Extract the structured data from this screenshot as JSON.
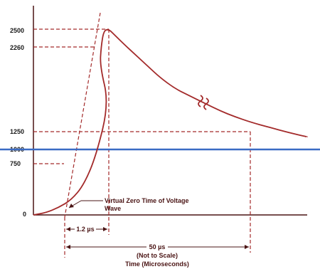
{
  "chart_data": {
    "type": "line",
    "title": "",
    "xlabel": "Time (Microseconds)",
    "ylabel": "",
    "yticks": [
      "2500",
      "2260",
      "1250",
      "1000",
      "750",
      "0"
    ],
    "ytick_values": [
      2500,
      2260,
      1250,
      1000,
      750,
      0
    ],
    "ylim": [
      0,
      2800
    ],
    "series": [
      {
        "kind": "impulse-waveform",
        "front_time_us": 1.2,
        "time_to_half_value_us": 50,
        "x": [
          0,
          0.2,
          0.4,
          0.6,
          0.8,
          1.0,
          1.2,
          1.3,
          1.5,
          2,
          3,
          5,
          8,
          12,
          16,
          20,
          25,
          30,
          35,
          40,
          45,
          50,
          55,
          60,
          65
        ],
        "y": [
          0,
          30,
          100,
          200,
          400,
          800,
          1500,
          2000,
          2260,
          2480,
          2500,
          2420,
          2300,
          2150,
          2000,
          1850,
          1700,
          1600,
          1500,
          1400,
          1320,
          1250,
          1180,
          1110,
          1050
        ]
      }
    ],
    "reference_line": {
      "value": 1000,
      "color": "#3a6bc4"
    },
    "annotations": {
      "virtual_zero": "Virtual Zero Time of Voltage Wave",
      "front_time": "1.2 µs",
      "tail_time": "50 µs",
      "not_to_scale": "(Not to Scale)"
    },
    "colors": {
      "curve": "#a32a2a",
      "axis": "#4a1414",
      "reference": "#3a6bc4"
    }
  }
}
